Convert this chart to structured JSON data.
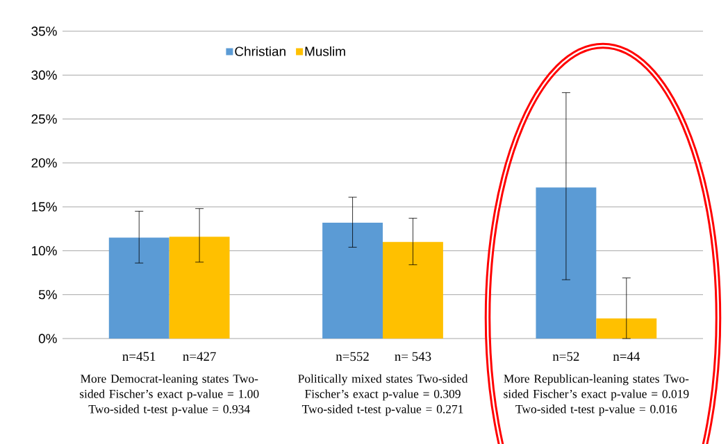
{
  "chart_data": {
    "type": "bar",
    "categories": [
      "More Democrat-leaning states Two-sided Fischer’s exact p-value = 1.00 Two-sided t-test p-value = 0.934",
      "Politically mixed states Two-sided Fischer’s exact p-value = 0.309 Two-sided t-test p-value = 0.271",
      "More Republican-leaning states Two-sided Fischer’s exact p-value = 0.019 Two-sided t-test p-value = 0.016"
    ],
    "series": [
      {
        "name": "Christian",
        "color": "#5b9bd5",
        "values": [
          11.5,
          13.2,
          17.2
        ],
        "errors": [
          [
            8.6,
            14.5
          ],
          [
            10.4,
            16.1
          ],
          [
            6.7,
            28.0
          ]
        ]
      },
      {
        "name": "Muslim",
        "color": "#ffc000",
        "values": [
          11.6,
          11.0,
          2.3
        ],
        "errors": [
          [
            8.7,
            14.8
          ],
          [
            8.4,
            13.7
          ],
          [
            0,
            6.9
          ]
        ]
      }
    ],
    "ylim": [
      0,
      35
    ],
    "yticks": [
      {
        "value": 0,
        "label": "0%"
      },
      {
        "value": 5,
        "label": "5%"
      },
      {
        "value": 10,
        "label": "10%"
      },
      {
        "value": 15,
        "label": "15%"
      },
      {
        "value": 20,
        "label": "20%"
      },
      {
        "value": 25,
        "label": "25%"
      },
      {
        "value": 30,
        "label": "30%"
      },
      {
        "value": 35,
        "label": "35%"
      }
    ],
    "grid": "y",
    "legend": "top",
    "annotations": [
      "n=451",
      "n=427",
      "n=552",
      "n= 543",
      "n=52",
      "n=44"
    ]
  }
}
